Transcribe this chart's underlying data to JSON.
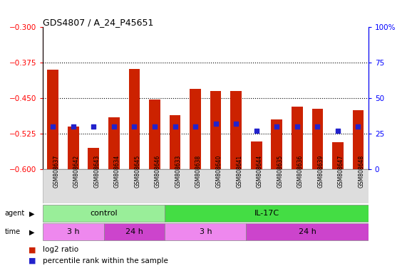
{
  "title": "GDS4807 / A_24_P45651",
  "samples": [
    "GSM808637",
    "GSM808642",
    "GSM808643",
    "GSM808634",
    "GSM808645",
    "GSM808646",
    "GSM808633",
    "GSM808638",
    "GSM808640",
    "GSM808641",
    "GSM808644",
    "GSM808635",
    "GSM808636",
    "GSM808639",
    "GSM808647",
    "GSM808648"
  ],
  "log2_ratio": [
    -0.39,
    -0.51,
    -0.555,
    -0.49,
    -0.388,
    -0.453,
    -0.485,
    -0.43,
    -0.435,
    -0.435,
    -0.542,
    -0.495,
    -0.468,
    -0.472,
    -0.543,
    -0.475
  ],
  "percentile_values": [
    30,
    30,
    30,
    30,
    30,
    30,
    30,
    30,
    32,
    32,
    27,
    30,
    30,
    30,
    27,
    30
  ],
  "bar_color": "#cc2200",
  "dot_color": "#2222cc",
  "ymin": -0.6,
  "ymax": -0.3,
  "yticks_left": [
    -0.6,
    -0.525,
    -0.45,
    -0.375,
    -0.3
  ],
  "yticks_right": [
    0,
    25,
    50,
    75,
    100
  ],
  "grid_values": [
    -0.375,
    -0.45,
    -0.525
  ],
  "agent_groups": [
    {
      "label": "control",
      "start": 0,
      "end": 6,
      "color": "#99ee99"
    },
    {
      "label": "IL-17C",
      "start": 6,
      "end": 16,
      "color": "#44dd44"
    }
  ],
  "time_groups": [
    {
      "label": "3 h",
      "start": 0,
      "end": 3,
      "color": "#ee88ee"
    },
    {
      "label": "24 h",
      "start": 3,
      "end": 6,
      "color": "#cc44cc"
    },
    {
      "label": "3 h",
      "start": 6,
      "end": 10,
      "color": "#ee88ee"
    },
    {
      "label": "24 h",
      "start": 10,
      "end": 16,
      "color": "#cc44cc"
    }
  ],
  "bar_width": 0.55,
  "dot_size": 22,
  "bar_baseline": -0.6
}
